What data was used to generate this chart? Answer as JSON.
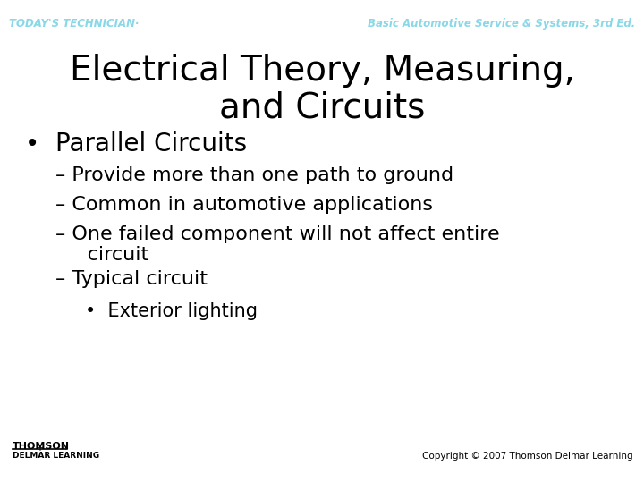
{
  "bg_color": "#ffffff",
  "header_left_text": "TODAY'S TECHNICIAN·",
  "header_right_text": "Basic Automotive Service & Systems, 3rd Ed.",
  "header_color": "#88d8e8",
  "title_line1": "Electrical Theory, Measuring,",
  "title_line2": "and Circuits",
  "title_color": "#000000",
  "title_fontsize": 28,
  "title_bold": false,
  "bullet1_text": "•  Parallel Circuits",
  "bullet1_fontsize": 20,
  "bullet1_bold": false,
  "sub_bullets": [
    "– Provide more than one path to ground",
    "– Common in automotive applications",
    "– One failed component will not affect entire\n     circuit",
    "– Typical circuit"
  ],
  "sub_bullet_fontsize": 16,
  "sub_sub_bullet": "•  Exterior lighting",
  "sub_sub_bullet_fontsize": 15,
  "footer_left_line1": "THOMSON",
  "footer_left_line2": "DELMAR LEARNING",
  "footer_right": "Copyright © 2007 Thomson Delmar Learning",
  "footer_color": "#000000",
  "footer_fontsize": 7.5,
  "text_color": "#000000"
}
